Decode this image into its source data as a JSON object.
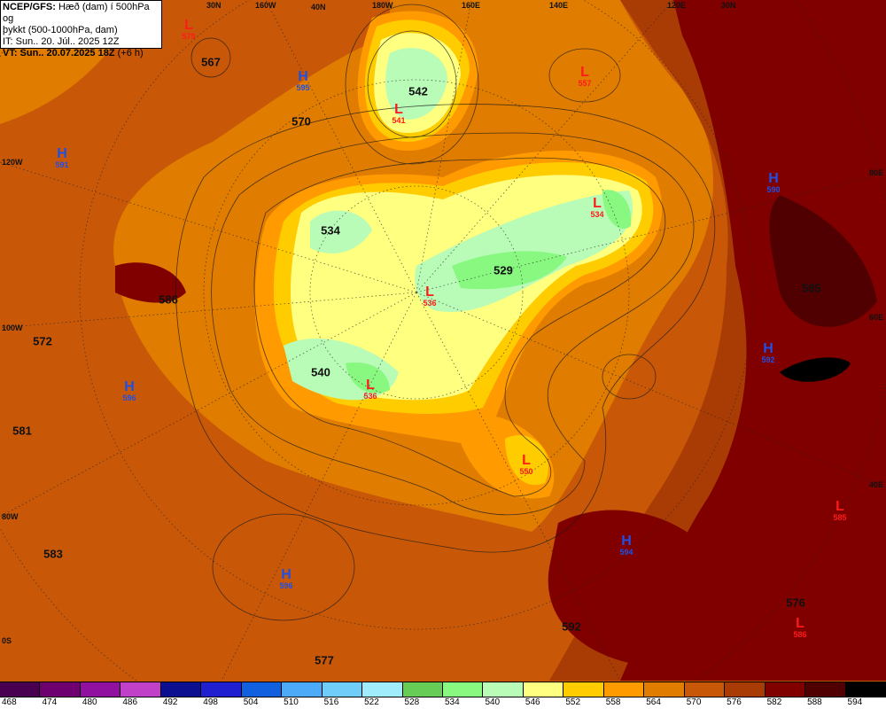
{
  "header": {
    "line1_bold": "NCEP/GFS:",
    "line1_rest": " Hæð (dam) í 500hPa og",
    "line2": "þykkt (500-1000hPa, dam)",
    "line3": "IT: Sun.. 20. Júl.. 2025 12Z",
    "line4_bold": "VT: Sun.. 20.07.2025 18Z",
    "line4_rest": " (+6 h)"
  },
  "graticule": [
    "30N",
    "160W",
    "40N",
    "180W",
    "160E",
    "140E",
    "120E",
    "30N",
    "120W",
    "100W",
    "80W",
    "0S",
    "80E",
    "60E",
    "40E"
  ],
  "contour_labels": [
    "567",
    "570",
    "542",
    "534",
    "529",
    "586",
    "585",
    "572",
    "540",
    "581",
    "583",
    "576",
    "592",
    "577"
  ],
  "centers": [
    {
      "kind": "L",
      "value": "579"
    },
    {
      "kind": "H",
      "value": "595"
    },
    {
      "kind": "H",
      "value": "591"
    },
    {
      "kind": "L",
      "value": "541"
    },
    {
      "kind": "L",
      "value": "557"
    },
    {
      "kind": "H",
      "value": "590"
    },
    {
      "kind": "L",
      "value": "534"
    },
    {
      "kind": "L",
      "value": "536"
    },
    {
      "kind": "H",
      "value": "592"
    },
    {
      "kind": "L",
      "value": "536"
    },
    {
      "kind": "H",
      "value": "596"
    },
    {
      "kind": "L",
      "value": "550"
    },
    {
      "kind": "L",
      "value": "585"
    },
    {
      "kind": "H",
      "value": "594"
    },
    {
      "kind": "H",
      "value": "596"
    },
    {
      "kind": "L",
      "value": "586"
    }
  ],
  "colorbar": {
    "labels": [
      "468",
      "474",
      "480",
      "486",
      "492",
      "498",
      "504",
      "510",
      "516",
      "522",
      "528",
      "534",
      "540",
      "546",
      "552",
      "558",
      "564",
      "570",
      "576",
      "582",
      "588",
      "594"
    ],
    "colors": [
      "#4a0050",
      "#6e0070",
      "#9010a0",
      "#c040c8",
      "#0c1090",
      "#2020d0",
      "#1060e0",
      "#4caaf8",
      "#70ccf8",
      "#a0ecfc",
      "#66cc55",
      "#88f880",
      "#b8fcb8",
      "#ffff80",
      "#ffcc00",
      "#ff9a00",
      "#e07c00",
      "#c85808",
      "#a83c04",
      "#800000",
      "#500000",
      "#000000"
    ]
  }
}
